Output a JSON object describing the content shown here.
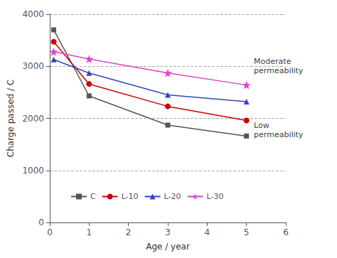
{
  "chart_data": {
    "type": "line",
    "xlabel": "Age / year",
    "ylabel": "Charge passed / C",
    "x": [
      0.1,
      1,
      3,
      5
    ],
    "series": [
      {
        "name": "C",
        "color": "#555555",
        "marker": "square",
        "line_style": "solid",
        "values": [
          3700,
          2430,
          1870,
          1660
        ]
      },
      {
        "name": "L-10",
        "color": "#cc0000",
        "marker": "circle",
        "line_style": "solid",
        "values": [
          3470,
          2660,
          2230,
          1960
        ]
      },
      {
        "name": "L-20",
        "color": "#3344bb",
        "marker": "triangle",
        "line_style": "solid",
        "values": [
          3130,
          2870,
          2450,
          2320
        ]
      },
      {
        "name": "L-30",
        "color": "#dd44cc",
        "marker": "star",
        "line_style": "solid",
        "values": [
          3280,
          3140,
          2870,
          2640
        ]
      }
    ],
    "xlim": [
      0,
      6
    ],
    "ylim": [
      0,
      4000
    ],
    "xticks": [
      0,
      1,
      2,
      3,
      4,
      5,
      6
    ],
    "yticks": [
      0,
      1000,
      2000,
      3000,
      4000
    ],
    "grid": true,
    "legend": "lower left",
    "annotations": [
      {
        "text": "Moderate\npermeability",
        "x": 5.08,
        "y": 3000
      },
      {
        "text": "Low\npermeability",
        "x": 5.08,
        "y": 1780
      }
    ]
  }
}
